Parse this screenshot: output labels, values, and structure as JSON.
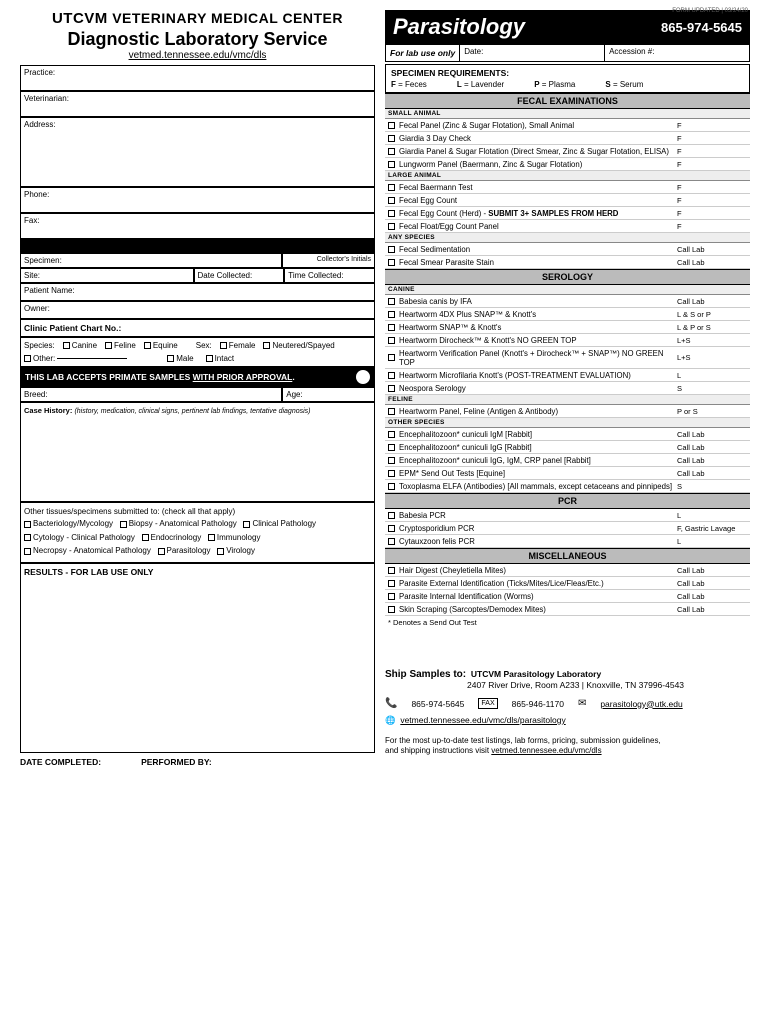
{
  "form_updated": "FORM UPDATED | 03/24/20",
  "header": {
    "brand": "UTCVM",
    "center": "VETERINARY MEDICAL CENTER",
    "service": "Diagnostic Laboratory Service",
    "url": "vetmed.tennessee.edu/vmc/dls"
  },
  "left_fields": {
    "practice": "Practice:",
    "vet": "Veterinarian:",
    "address": "Address:",
    "phone": "Phone:",
    "fax": "Fax:",
    "specimen": "Specimen:",
    "collectors_initials": "Collector's Initials",
    "site": "Site:",
    "date_collected": "Date Collected:",
    "time_collected": "Time Collected:",
    "patient_name": "Patient Name:",
    "owner": "Owner:",
    "clinic_chart": "Clinic Patient Chart No.:",
    "species_label": "Species:",
    "canine": "Canine",
    "feline": "Feline",
    "equine": "Equine",
    "other": "Other:",
    "sex_label": "Sex:",
    "female": "Female",
    "male": "Male",
    "neutered": "Neutered/Spayed",
    "intact": "Intact",
    "primate": "THIS LAB ACCEPTS PRIMATE SAMPLES",
    "primate_u": "WITH PRIOR APPROVAL",
    "breed": "Breed:",
    "age": "Age:",
    "case_history": "Case History:",
    "case_history_sub": "(history, medication, clinical signs, pertinent lab findings, tentative diagnosis)",
    "other_tissues_title": "Other tissues/specimens submitted to: (check all that apply)",
    "ot": {
      "bact": "Bacteriology/Mycology",
      "biopsy": "Biopsy - Anatomical Pathology",
      "clinpath": "Clinical Pathology",
      "cyto": "Cytology - Clinical Pathology",
      "endo": "Endocrinology",
      "immuno": "Immunology",
      "necro": "Necropsy - Anatomical Pathology",
      "para": "Parasitology",
      "viro": "Virology"
    },
    "results_label": "RESULTS - FOR LAB USE ONLY",
    "date_completed": "DATE COMPLETED:",
    "performed_by": "PERFORMED BY:"
  },
  "right": {
    "title": "Parasitology",
    "phone": "865-974-5645",
    "lab_use_only": "For lab use only",
    "date_label": "Date:",
    "accession_label": "Accession #:",
    "spec_req_title": "SPECIMEN REQUIREMENTS:",
    "codes": {
      "F": "F",
      "F_l": "= Feces",
      "L": "L",
      "L_l": "= Lavender",
      "P": "P",
      "P_l": "= Plasma",
      "S": "S",
      "S_l": "= Serum"
    },
    "sections": {
      "fecal": "FECAL EXAMINATIONS",
      "serology": "SEROLOGY",
      "pcr": "PCR",
      "misc": "MISCELLANEOUS"
    },
    "sub": {
      "small_animal": "SMALL ANIMAL",
      "large_animal": "LARGE ANIMAL",
      "any_species": "ANY SPECIES",
      "canine": "CANINE",
      "feline": "FELINE",
      "other_species": "OTHER SPECIES"
    },
    "tests": {
      "fecal_small": [
        {
          "n": "Fecal Panel (Zinc & Sugar Flotation), Small Animal",
          "s": "F"
        },
        {
          "n": "Giardia 3 Day Check",
          "s": "F"
        },
        {
          "n": "Giardia Panel & Sugar Flotation (Direct Smear, Zinc & Sugar Flotation, ELISA)",
          "s": "F"
        },
        {
          "n": "Lungworm Panel (Baermann, Zinc & Sugar Flotation)",
          "s": "F"
        }
      ],
      "fecal_large": [
        {
          "n": "Fecal Baermann Test",
          "s": "F"
        },
        {
          "n": "Fecal Egg Count",
          "s": "F"
        },
        {
          "n": "Fecal Egg Count (Herd) - ",
          "b": "SUBMIT 3+ SAMPLES FROM HERD",
          "s": "F"
        },
        {
          "n": "Fecal Float/Egg Count Panel",
          "s": "F"
        }
      ],
      "fecal_any": [
        {
          "n": "Fecal Sedimentation",
          "s": "Call Lab"
        },
        {
          "n": "Fecal Smear Parasite Stain",
          "s": "Call Lab"
        }
      ],
      "sero_canine": [
        {
          "n": "Babesia canis by IFA",
          "s": "Call Lab"
        },
        {
          "n": "Heartworm 4DX Plus SNAP™ & Knott's",
          "s": "L & S or P"
        },
        {
          "n": "Heartworm SNAP™ & Knott's",
          "s": "L & P or S"
        },
        {
          "n": "Heartworm Dirocheck™ & Knott's  NO GREEN TOP",
          "s": "L+S"
        },
        {
          "n": "Heartworm Verification Panel (Knott's + Dirocheck™ + SNAP™) NO GREEN TOP",
          "s": "L+S"
        },
        {
          "n": "Heartworm Microfilaria Knott's (POST-TREATMENT EVALUATION)",
          "s": "L"
        },
        {
          "n": "Neospora Serology",
          "s": "S"
        }
      ],
      "sero_feline": [
        {
          "n": "Heartworm Panel, Feline (Antigen & Antibody)",
          "s": "P or S"
        }
      ],
      "sero_other": [
        {
          "n": "Encephalitozoon* cuniculi IgM [Rabbit]",
          "s": "Call Lab"
        },
        {
          "n": "Encephalitozoon* cuniculi IgG [Rabbit]",
          "s": "Call Lab"
        },
        {
          "n": "Encephalitozoon* cuniculi IgG, IgM, CRP panel [Rabbit]",
          "s": "Call Lab"
        },
        {
          "n": "EPM* Send Out Tests [Equine]",
          "s": "Call Lab"
        },
        {
          "n": "Toxoplasma ELFA  (Antibodies) [All mammals, except cetaceans and pinnipeds]",
          "s": "S"
        }
      ],
      "pcr": [
        {
          "n": "Babesia PCR",
          "s": "L"
        },
        {
          "n": "Cryptosporidium PCR",
          "s": "F, Gastric Lavage"
        },
        {
          "n": "Cytauxzoon felis PCR",
          "s": "L"
        }
      ],
      "misc": [
        {
          "n": "Hair Digest (Cheyletiella Mites)",
          "s": "Call Lab"
        },
        {
          "n": "Parasite External Identification (Ticks/Mites/Lice/Fleas/Etc.)",
          "s": "Call Lab"
        },
        {
          "n": "Parasite Internal Identification (Worms)",
          "s": "Call Lab"
        },
        {
          "n": "Skin Scraping (Sarcoptes/Demodex Mites)",
          "s": "Call Lab"
        }
      ]
    },
    "sendout_note": "* Denotes a Send Out Test",
    "ship": {
      "title": "Ship Samples to:",
      "name": "UTCVM Parasitology Laboratory",
      "addr": "2407 River Drive, Room A233  |  Knoxville, TN  37996-4543",
      "phone": "865-974-5645",
      "fax_label": "FAX",
      "fax": "865-946-1170",
      "email": "parasitology@utk.edu",
      "web": "vetmed.tennessee.edu/vmc/dls/parasitology",
      "footer1": "For the most up-to-date test listings, lab forms, pricing, submission guidelines,",
      "footer2": "and shipping instructions visit ",
      "footer_url": "vetmed.tennessee.edu/vmc/dls"
    }
  }
}
